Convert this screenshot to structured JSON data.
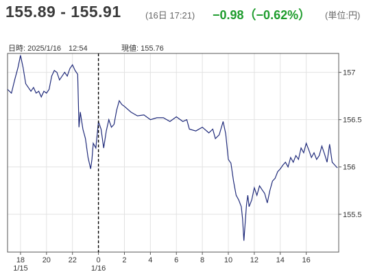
{
  "header": {
    "bid_ask": "155.89 - 155.91",
    "timestamp": "(16日 17:21)",
    "change": "−0.98（−0.62%）",
    "unit": "(単位:円)"
  },
  "info": {
    "datetime": "日時: 2025/1/16　12:54",
    "current_price": "現値: 155.76"
  },
  "colors": {
    "change": "#1e9c2d",
    "line": "#1f2a7a",
    "grid": "#e2e2e2"
  },
  "chart_data": {
    "type": "line",
    "title": "",
    "xlabel": "",
    "ylabel": "",
    "x_unit": "hours from 1/15 17:00 (JST)",
    "xlim": [
      0,
      25.5
    ],
    "ylim": [
      155.1,
      157.2
    ],
    "y_ticks": [
      {
        "value": 157,
        "label": "157"
      },
      {
        "value": 156.5,
        "label": "156.5"
      },
      {
        "value": 156,
        "label": "156"
      },
      {
        "value": 155.5,
        "label": "155.5"
      }
    ],
    "x_ticks": [
      {
        "value": 1,
        "label": "18"
      },
      {
        "value": 3,
        "label": "20"
      },
      {
        "value": 5,
        "label": "22"
      },
      {
        "value": 7,
        "label": "0"
      },
      {
        "value": 9,
        "label": "2"
      },
      {
        "value": 11,
        "label": "4"
      },
      {
        "value": 13,
        "label": "6"
      },
      {
        "value": 15,
        "label": "8"
      },
      {
        "value": 17,
        "label": "10"
      },
      {
        "value": 19,
        "label": "12"
      },
      {
        "value": 21,
        "label": "14"
      },
      {
        "value": 23,
        "label": "16"
      }
    ],
    "date_labels": [
      {
        "value": 1,
        "label": "1/15"
      },
      {
        "value": 7,
        "label": "1/16"
      }
    ],
    "cursor_x": 7,
    "series": [
      {
        "x": [
          0,
          0.3,
          0.55,
          0.8,
          1.0,
          1.2,
          1.4,
          1.6,
          1.8,
          2.0,
          2.2,
          2.4,
          2.6,
          2.8,
          3.0,
          3.2,
          3.4,
          3.6,
          3.8,
          4.0,
          4.2,
          4.4,
          4.6,
          4.8,
          5.0,
          5.2,
          5.4,
          5.5,
          5.6,
          5.8,
          6.0,
          6.2,
          6.4,
          6.5,
          6.6,
          6.8,
          7.0,
          7.2,
          7.4,
          7.6,
          7.8,
          8.0,
          8.2,
          8.4,
          8.6,
          8.8,
          9.0,
          9.5,
          10.0,
          10.5,
          11.0,
          11.5,
          12.0,
          12.5,
          13.0,
          13.5,
          13.8,
          14.0,
          14.5,
          15.0,
          15.5,
          15.8,
          16.0,
          16.3,
          16.6,
          16.8,
          17.0,
          17.2,
          17.4,
          17.6,
          17.8,
          18.0,
          18.1,
          18.2,
          18.4,
          18.5,
          18.6,
          18.8,
          19.0,
          19.2,
          19.4,
          19.6,
          19.8,
          20.0,
          20.2,
          20.4,
          20.6,
          20.8,
          21.0,
          21.2,
          21.4,
          21.6,
          21.8,
          22.0,
          22.2,
          22.4,
          22.6,
          22.8,
          23.0,
          23.2,
          23.4,
          23.6,
          23.8,
          24.0,
          24.2,
          24.4,
          24.6,
          24.8,
          25.0,
          25.2,
          25.4
        ],
        "y": [
          156.82,
          156.78,
          156.92,
          157.05,
          157.18,
          157.05,
          156.88,
          156.84,
          156.8,
          156.84,
          156.78,
          156.8,
          156.74,
          156.8,
          156.78,
          156.82,
          156.96,
          157.02,
          157.0,
          156.92,
          156.96,
          157.0,
          156.96,
          157.04,
          157.08,
          157.02,
          156.98,
          156.42,
          156.58,
          156.4,
          156.3,
          156.1,
          155.98,
          156.08,
          156.25,
          156.2,
          156.48,
          156.4,
          156.2,
          156.38,
          156.5,
          156.42,
          156.45,
          156.6,
          156.7,
          156.66,
          156.64,
          156.58,
          156.54,
          156.55,
          156.5,
          156.52,
          156.52,
          156.48,
          156.53,
          156.48,
          156.5,
          156.4,
          156.38,
          156.42,
          156.36,
          156.4,
          156.3,
          156.34,
          156.48,
          156.35,
          156.08,
          156.04,
          155.85,
          155.7,
          155.65,
          155.58,
          155.45,
          155.22,
          155.6,
          155.7,
          155.58,
          155.65,
          155.78,
          155.7,
          155.8,
          155.76,
          155.72,
          155.62,
          155.75,
          155.85,
          155.88,
          155.95,
          155.98,
          156.02,
          156.05,
          156.0,
          156.1,
          156.05,
          156.12,
          156.08,
          156.2,
          156.15,
          156.25,
          156.18,
          156.1,
          156.15,
          156.08,
          156.12,
          156.22,
          156.14,
          156.05,
          156.24,
          156.05,
          156.02,
          155.99
        ]
      }
    ]
  }
}
